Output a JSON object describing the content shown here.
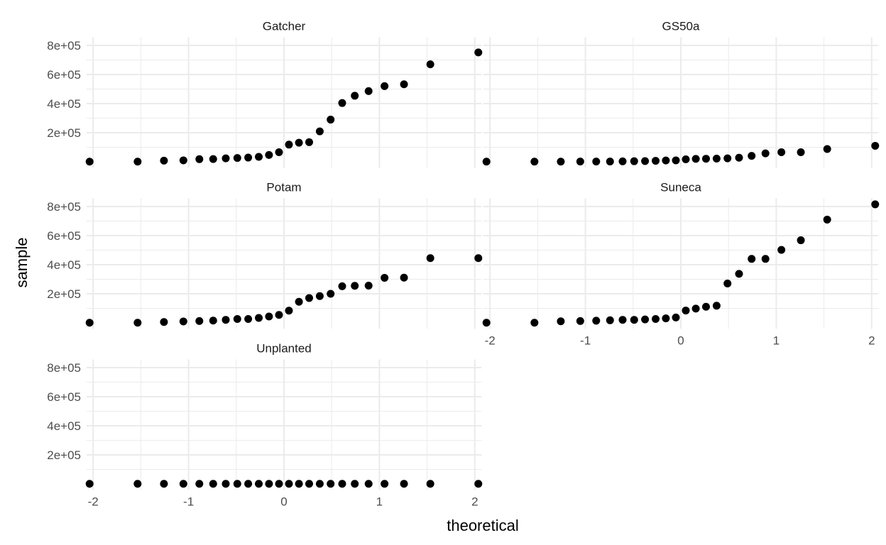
{
  "chart_data": {
    "type": "scatter",
    "subtype": "qq-plot-faceted",
    "xlabel": "theoretical",
    "ylabel": "sample",
    "xlim": [
      -2.07,
      2.07
    ],
    "ylim": [
      -41000,
      856000
    ],
    "x_ticks": [
      -2,
      -1,
      0,
      1,
      2
    ],
    "x_tick_labels": [
      "-2",
      "-1",
      "0",
      "1",
      "2"
    ],
    "y_ticks": [
      200000,
      400000,
      600000,
      800000
    ],
    "y_tick_labels": [
      "2e+05",
      "4e+05",
      "6e+05",
      "8e+05"
    ],
    "grid": true,
    "point_color": "#000000",
    "theoretical": [
      -2.037,
      -1.534,
      -1.258,
      -1.054,
      -0.887,
      -0.742,
      -0.61,
      -0.489,
      -0.375,
      -0.264,
      -0.157,
      -0.052,
      0.052,
      0.157,
      0.264,
      0.375,
      0.489,
      0.61,
      0.742,
      0.887,
      1.054,
      1.258,
      1.534,
      2.037
    ],
    "series": [
      {
        "name": "Gatcher",
        "values": [
          1000,
          1000,
          8000,
          10000,
          18000,
          19000,
          24000,
          26000,
          29000,
          34000,
          47000,
          66000,
          118000,
          131000,
          135000,
          209000,
          290000,
          404000,
          454000,
          486000,
          520000,
          533000,
          670000,
          752000
        ]
      },
      {
        "name": "GS50a",
        "values": [
          1000,
          1000,
          1000,
          2000,
          2000,
          2000,
          3000,
          4000,
          5000,
          7000,
          9000,
          10000,
          17000,
          20000,
          21000,
          22000,
          24000,
          28000,
          41000,
          58000,
          66000,
          66000,
          88000,
          110000
        ]
      },
      {
        "name": "Potam",
        "values": [
          1000,
          1000,
          6000,
          10000,
          13000,
          16000,
          21000,
          27000,
          27000,
          34000,
          44000,
          55000,
          84000,
          145000,
          171000,
          184000,
          200000,
          252000,
          255000,
          256000,
          310000,
          311000,
          445000,
          445000
        ]
      },
      {
        "name": "Suneca",
        "values": [
          1000,
          1000,
          11000,
          13000,
          15000,
          18000,
          21000,
          21000,
          24000,
          27000,
          31000,
          37000,
          85000,
          98000,
          111000,
          118000,
          271000,
          337000,
          440000,
          440000,
          502000,
          568000,
          710000,
          815000
        ]
      },
      {
        "name": "Unplanted",
        "values": [
          1000,
          1000,
          1000,
          1000,
          1000,
          1000,
          1000,
          1000,
          1000,
          1000,
          1000,
          1000,
          1000,
          1000,
          1000,
          1000,
          1000,
          1000,
          1000,
          1000,
          1000,
          1000,
          1000,
          1000
        ]
      }
    ]
  }
}
